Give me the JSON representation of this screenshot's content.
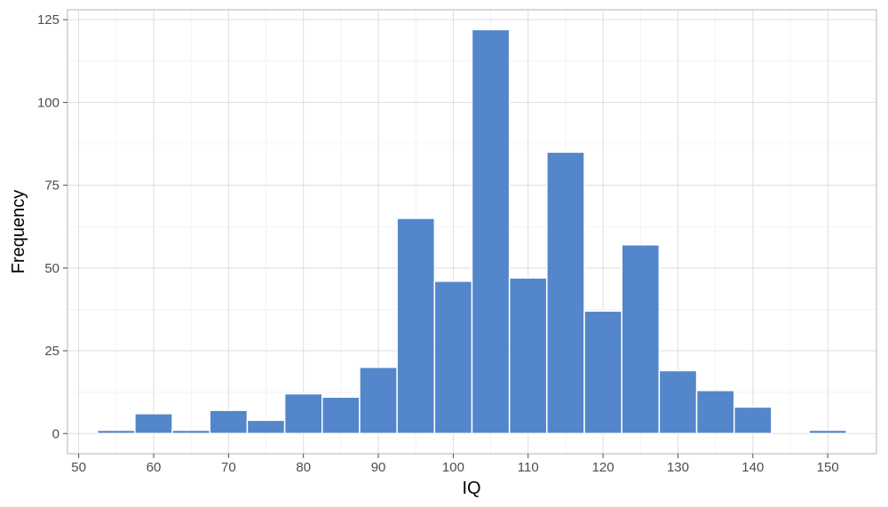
{
  "chart_data": {
    "type": "bar",
    "subtype": "histogram",
    "title": "",
    "xlabel": "IQ",
    "ylabel": "Frequency",
    "bin_width": 5,
    "bins": [
      {
        "start": 52.5,
        "end": 57.5,
        "count": 1
      },
      {
        "start": 57.5,
        "end": 62.5,
        "count": 6
      },
      {
        "start": 62.5,
        "end": 67.5,
        "count": 1
      },
      {
        "start": 67.5,
        "end": 72.5,
        "count": 7
      },
      {
        "start": 72.5,
        "end": 77.5,
        "count": 4
      },
      {
        "start": 77.5,
        "end": 82.5,
        "count": 12
      },
      {
        "start": 82.5,
        "end": 87.5,
        "count": 11
      },
      {
        "start": 87.5,
        "end": 92.5,
        "count": 20
      },
      {
        "start": 92.5,
        "end": 97.5,
        "count": 65
      },
      {
        "start": 97.5,
        "end": 102.5,
        "count": 46
      },
      {
        "start": 102.5,
        "end": 107.5,
        "count": 122
      },
      {
        "start": 107.5,
        "end": 112.5,
        "count": 47
      },
      {
        "start": 112.5,
        "end": 117.5,
        "count": 85
      },
      {
        "start": 117.5,
        "end": 122.5,
        "count": 37
      },
      {
        "start": 122.5,
        "end": 127.5,
        "count": 57
      },
      {
        "start": 127.5,
        "end": 132.5,
        "count": 19
      },
      {
        "start": 132.5,
        "end": 137.5,
        "count": 13
      },
      {
        "start": 137.5,
        "end": 142.5,
        "count": 8
      },
      {
        "start": 142.5,
        "end": 147.5,
        "count": 0
      },
      {
        "start": 147.5,
        "end": 152.5,
        "count": 1
      }
    ],
    "xlim": [
      48.5,
      156.5
    ],
    "ylim": [
      -6.1,
      128
    ],
    "xticks": [
      50,
      60,
      70,
      80,
      90,
      100,
      110,
      120,
      130,
      140,
      150
    ],
    "yticks": [
      0,
      25,
      50,
      75,
      100,
      125
    ],
    "grid": true,
    "legend": "none",
    "colors": {
      "bar_fill": "#4a80c8",
      "bar_outline": "#ffffff",
      "panel_border": "#b3b3b3",
      "grid_major": "#dedede",
      "grid_minor": "#f0f0f0",
      "tick_label": "#4d4d4d",
      "axis_title": "#000000"
    }
  }
}
